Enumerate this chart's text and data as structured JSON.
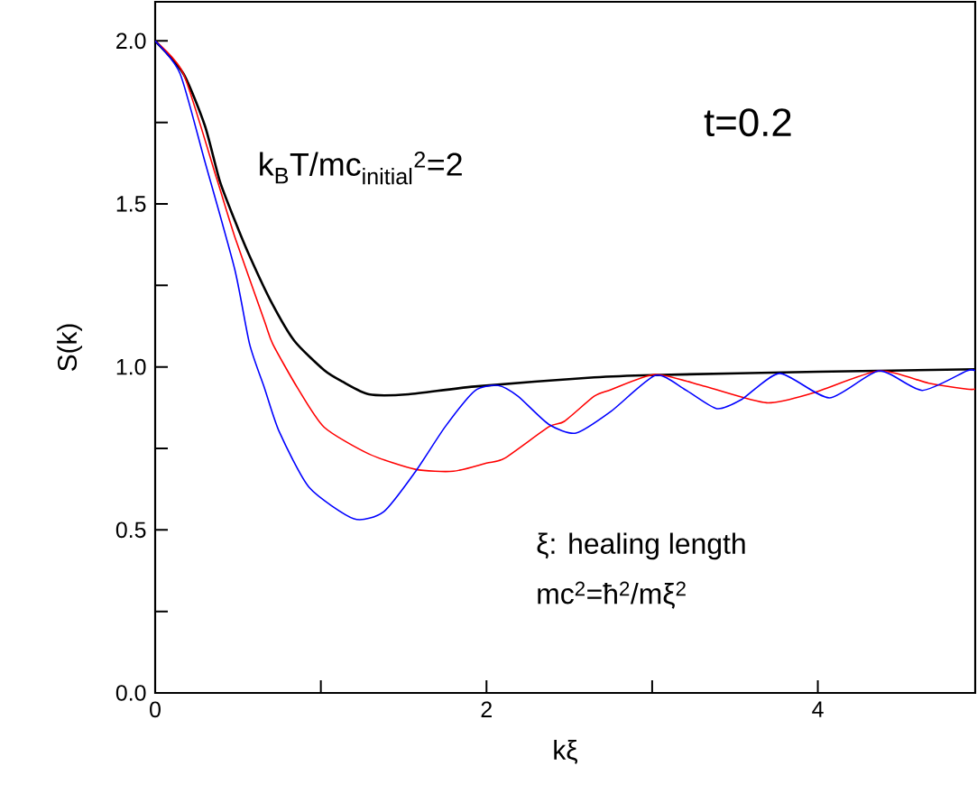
{
  "chart_data": {
    "type": "line",
    "xlabel": "kξ",
    "ylabel": "S(k)",
    "xlim": [
      0,
      4.95
    ],
    "ylim": [
      0,
      2.12
    ],
    "xticks": [
      0,
      {
        "value": 1,
        "label": null
      },
      2,
      {
        "value": 3,
        "label": null
      },
      4
    ],
    "yticks": [
      {
        "value": 0,
        "label": "0.0"
      },
      {
        "value": 0.25,
        "label": null
      },
      0.5,
      {
        "value": 0.75,
        "label": null
      },
      {
        "value": 1,
        "label": "1.0"
      },
      {
        "value": 1.25,
        "label": null
      },
      1.5,
      {
        "value": 1.75,
        "label": null
      },
      {
        "value": 2,
        "label": "2.0"
      }
    ],
    "annotations": [
      "t=0.2",
      "k$_{B}$T/mc$_{initial}$$^{2}$=2",
      "ξ: healing length",
      "mc$^{2}$=ħ$^{2}$/mξ$^{2}$"
    ],
    "series": [
      {
        "color": "#000000",
        "x": [
          0,
          0.17,
          0.3,
          0.39,
          0.48,
          0.57,
          0.7,
          0.84,
          1.02,
          1.13,
          1.29,
          1.53,
          1.93,
          2.65,
          3.0,
          4.0,
          4.95
        ],
        "values": [
          2.0,
          1.9,
          1.74,
          1.57,
          1.45,
          1.34,
          1.2,
          1.08,
          0.99,
          0.955,
          0.916,
          0.916,
          0.94,
          0.968,
          0.975,
          0.985,
          0.993
        ]
      },
      {
        "color": "#ff0000",
        "x": [
          0,
          0.17,
          0.37,
          0.48,
          0.66,
          0.71,
          0.86,
          1.02,
          1.29,
          1.57,
          1.8,
          2.0,
          2.11,
          2.375,
          2.47,
          2.65,
          2.75,
          3.02,
          3.32,
          3.69,
          3.97,
          4.37,
          4.67,
          4.9,
          4.95
        ],
        "values": [
          2.0,
          1.9,
          1.58,
          1.4,
          1.14,
          1.07,
          0.935,
          0.815,
          0.733,
          0.686,
          0.68,
          0.705,
          0.72,
          0.816,
          0.833,
          0.91,
          0.93,
          0.977,
          0.94,
          0.89,
          0.92,
          0.988,
          0.95,
          0.932,
          0.932
        ]
      },
      {
        "color": "#0000ff",
        "x": [
          0,
          0.15,
          0.3,
          0.48,
          0.57,
          0.66,
          0.75,
          0.93,
          1.2,
          1.38,
          1.57,
          1.75,
          1.93,
          2.07,
          2.19,
          2.375,
          2.54,
          2.75,
          3.02,
          3.2,
          3.39,
          3.54,
          3.77,
          4.07,
          4.37,
          4.63,
          4.9,
          4.95
        ],
        "values": [
          2.0,
          1.9,
          1.63,
          1.3,
          1.07,
          0.935,
          0.8,
          0.63,
          0.534,
          0.556,
          0.678,
          0.816,
          0.927,
          0.943,
          0.91,
          0.824,
          0.797,
          0.863,
          0.974,
          0.93,
          0.872,
          0.9,
          0.98,
          0.905,
          0.988,
          0.928,
          0.988,
          0.988
        ]
      }
    ]
  }
}
